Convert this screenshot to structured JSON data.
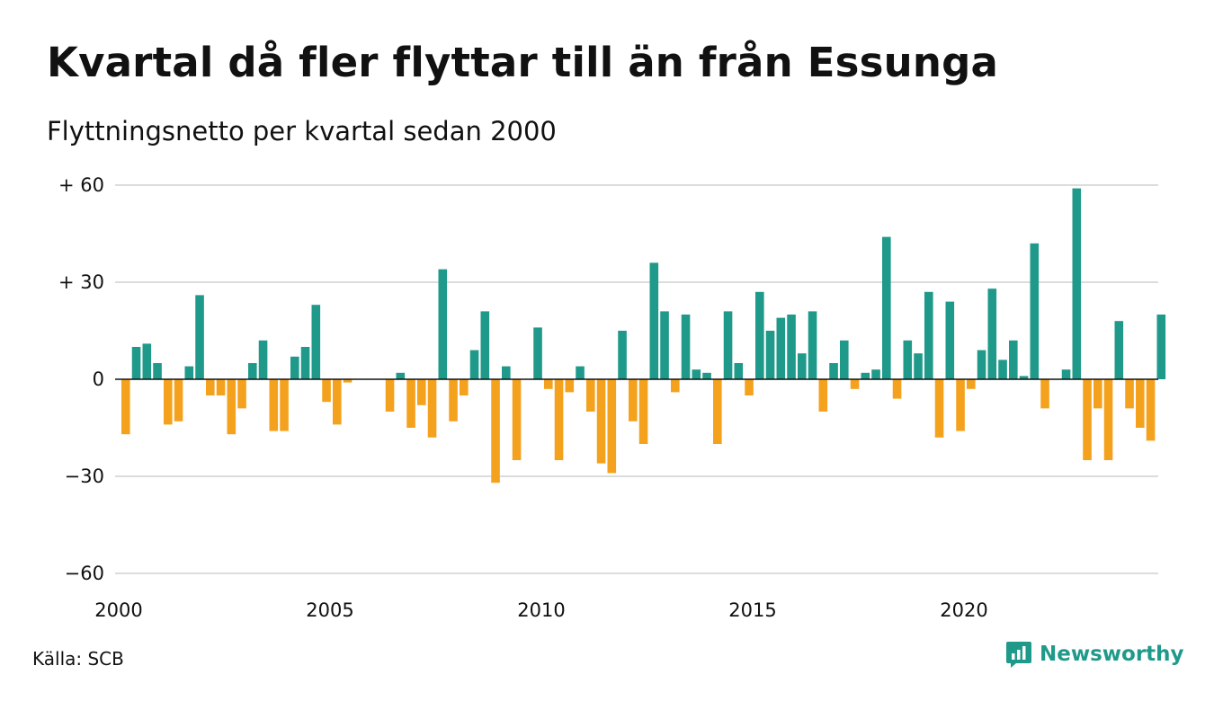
{
  "title": "Kvartal då fler flyttar till än från Essunga",
  "subtitle": "Flyttningsnetto per kvartal sedan 2000",
  "source": "Källa: SCB",
  "brand": "Newsworthy",
  "colors": {
    "positive": "#1f9a8a",
    "negative": "#f4a21e",
    "grid": "#dcdcdc",
    "zero": "#111111",
    "brand": "#1f9a8a"
  },
  "chart_data": {
    "type": "bar",
    "x_start": "2000 Q1",
    "frequency": "quarterly",
    "values": [
      -17,
      10,
      11,
      5,
      -14,
      -13,
      4,
      26,
      -5,
      -5,
      -17,
      -9,
      5,
      12,
      -16,
      -16,
      7,
      10,
      23,
      -7,
      -14,
      -1,
      0,
      0,
      0,
      -10,
      2,
      -15,
      -8,
      -18,
      34,
      -13,
      -5,
      9,
      21,
      -32,
      4,
      -25,
      0,
      16,
      -3,
      -25,
      -4,
      4,
      -10,
      -26,
      -29,
      15,
      -13,
      -20,
      36,
      21,
      -4,
      20,
      3,
      2,
      -20,
      21,
      5,
      -5,
      27,
      15,
      19,
      20,
      8,
      21,
      -10,
      5,
      12,
      -3,
      2,
      3,
      44,
      -6,
      12,
      8,
      27,
      -18,
      24,
      -16,
      -3,
      9,
      28,
      6,
      12,
      1,
      42,
      -9,
      0,
      3,
      59,
      -25,
      -9,
      -25,
      18,
      -9,
      -15,
      -19,
      20
    ],
    "yticks": [
      60,
      30,
      0,
      -30,
      -60
    ],
    "ytick_labels": [
      "+ 60",
      "+ 30",
      "0",
      "−30",
      "−60"
    ],
    "xticks": [
      2000,
      2005,
      2010,
      2015,
      2020
    ],
    "xtick_labels": [
      "2000",
      "2005",
      "2010",
      "2015",
      "2020"
    ],
    "ylim": [
      -60,
      60
    ],
    "xlabel": "",
    "ylabel": "",
    "grid": true,
    "legend": "none"
  }
}
